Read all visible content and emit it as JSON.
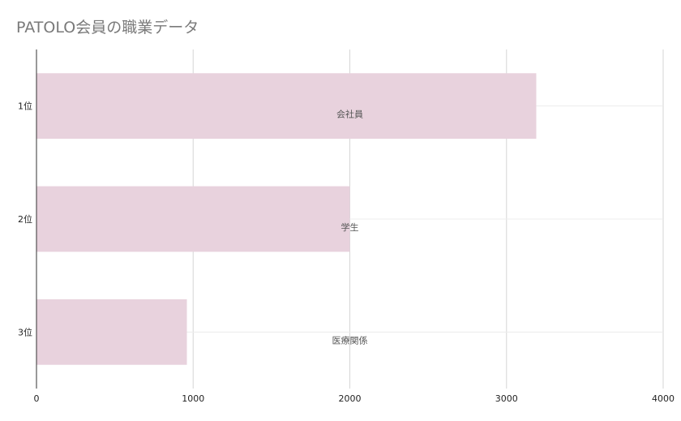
{
  "chart_data": {
    "type": "bar",
    "orientation": "horizontal",
    "title": "PATOLO会員の職業データ",
    "categories": [
      "1位",
      "2位",
      "3位"
    ],
    "values": [
      3190,
      2000,
      960
    ],
    "data_labels": [
      "会社員",
      "学生",
      "医療関係"
    ],
    "xlim": [
      0,
      4000
    ],
    "xticks": [
      "0",
      "1000",
      "2000",
      "3000",
      "4000"
    ],
    "xlabel": "",
    "ylabel": "",
    "grid": true,
    "legend": "none",
    "bar_color": "#e8d2dd"
  }
}
